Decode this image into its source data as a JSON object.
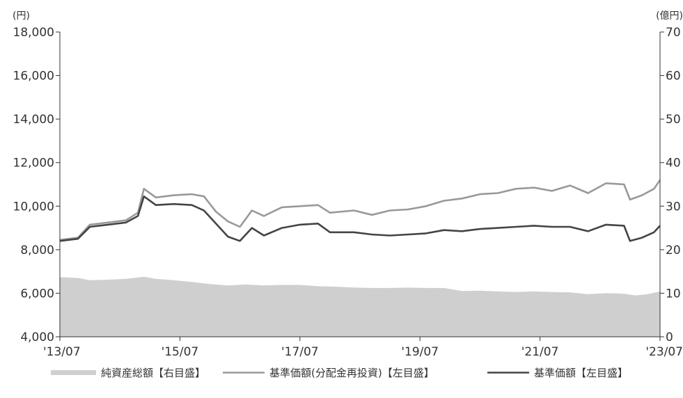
{
  "chart_data": {
    "type": "line",
    "left_unit": "(円)",
    "right_unit": "(億円)",
    "y_left_ticks": [
      "18,000",
      "16,000",
      "14,000",
      "12,000",
      "10,000",
      "8,000",
      "6,000",
      "4,000"
    ],
    "y_right_ticks": [
      "70",
      "60",
      "50",
      "40",
      "30",
      "20",
      "10",
      "0"
    ],
    "ylim_left": [
      4000,
      18000
    ],
    "ylim_right": [
      0,
      70
    ],
    "x_ticks": [
      "'13/07",
      "'15/07",
      "'17/07",
      "'19/07",
      "'21/07",
      "'23/07"
    ],
    "xlim": [
      2013.5,
      2023.5
    ],
    "grid": false,
    "legend_position": "bottom",
    "colors": {
      "net_assets": "#cfcfcf",
      "nav_reinvested": "#999999",
      "nav": "#444444",
      "axis": "#333333"
    },
    "series": [
      {
        "name": "純資産総額【右目盛】",
        "axis": "right",
        "style": "area",
        "x": [
          2013.5,
          2013.8,
          2014.0,
          2014.3,
          2014.6,
          2014.9,
          2015.1,
          2015.4,
          2015.7,
          2016.0,
          2016.3,
          2016.6,
          2016.9,
          2017.2,
          2017.5,
          2017.8,
          2018.1,
          2018.4,
          2018.7,
          2019.0,
          2019.3,
          2019.6,
          2019.9,
          2020.2,
          2020.5,
          2020.8,
          2021.1,
          2021.4,
          2021.7,
          2022.0,
          2022.3,
          2022.6,
          2022.9,
          2023.1,
          2023.3,
          2023.5
        ],
        "values": [
          13.7,
          13.5,
          13.0,
          13.1,
          13.3,
          13.8,
          13.3,
          13.0,
          12.6,
          12.1,
          11.8,
          12.0,
          11.8,
          11.9,
          11.9,
          11.6,
          11.5,
          11.3,
          11.2,
          11.2,
          11.3,
          11.2,
          11.2,
          10.5,
          10.6,
          10.4,
          10.3,
          10.4,
          10.3,
          10.2,
          9.8,
          10.0,
          9.9,
          9.5,
          9.8,
          10.4
        ]
      },
      {
        "name": "基準価額(分配金再投資)【左目盛】",
        "axis": "left",
        "style": "line",
        "x": [
          2013.5,
          2013.8,
          2014.0,
          2014.3,
          2014.6,
          2014.8,
          2014.9,
          2015.1,
          2015.4,
          2015.7,
          2015.9,
          2016.1,
          2016.3,
          2016.5,
          2016.7,
          2016.9,
          2017.2,
          2017.5,
          2017.8,
          2018.0,
          2018.4,
          2018.7,
          2019.0,
          2019.3,
          2019.6,
          2019.9,
          2020.2,
          2020.5,
          2020.8,
          2021.1,
          2021.4,
          2021.7,
          2022.0,
          2022.3,
          2022.6,
          2022.9,
          2023.0,
          2023.2,
          2023.4,
          2023.5
        ],
        "values": [
          8450,
          8550,
          9150,
          9250,
          9350,
          9700,
          10800,
          10400,
          10500,
          10550,
          10450,
          9750,
          9300,
          9050,
          9800,
          9550,
          9950,
          10000,
          10050,
          9700,
          9800,
          9600,
          9800,
          9850,
          10000,
          10250,
          10350,
          10550,
          10600,
          10800,
          10850,
          10700,
          10950,
          10600,
          11050,
          11000,
          10300,
          10500,
          10800,
          11200
        ]
      },
      {
        "name": "基準価額【左目盛】",
        "axis": "left",
        "style": "line",
        "x": [
          2013.5,
          2013.8,
          2014.0,
          2014.3,
          2014.6,
          2014.8,
          2014.9,
          2015.1,
          2015.4,
          2015.7,
          2015.9,
          2016.1,
          2016.3,
          2016.5,
          2016.7,
          2016.9,
          2017.2,
          2017.5,
          2017.8,
          2018.0,
          2018.4,
          2018.7,
          2019.0,
          2019.3,
          2019.6,
          2019.9,
          2020.2,
          2020.5,
          2020.8,
          2021.1,
          2021.4,
          2021.7,
          2022.0,
          2022.3,
          2022.6,
          2022.9,
          2023.0,
          2023.2,
          2023.4,
          2023.5
        ],
        "values": [
          8400,
          8500,
          9050,
          9150,
          9250,
          9550,
          10450,
          10050,
          10100,
          10050,
          9800,
          9200,
          8600,
          8400,
          9000,
          8650,
          9000,
          9150,
          9200,
          8800,
          8800,
          8700,
          8650,
          8700,
          8750,
          8900,
          8850,
          8950,
          9000,
          9050,
          9100,
          9050,
          9050,
          8850,
          9150,
          9100,
          8400,
          8550,
          8800,
          9100
        ]
      }
    ]
  }
}
